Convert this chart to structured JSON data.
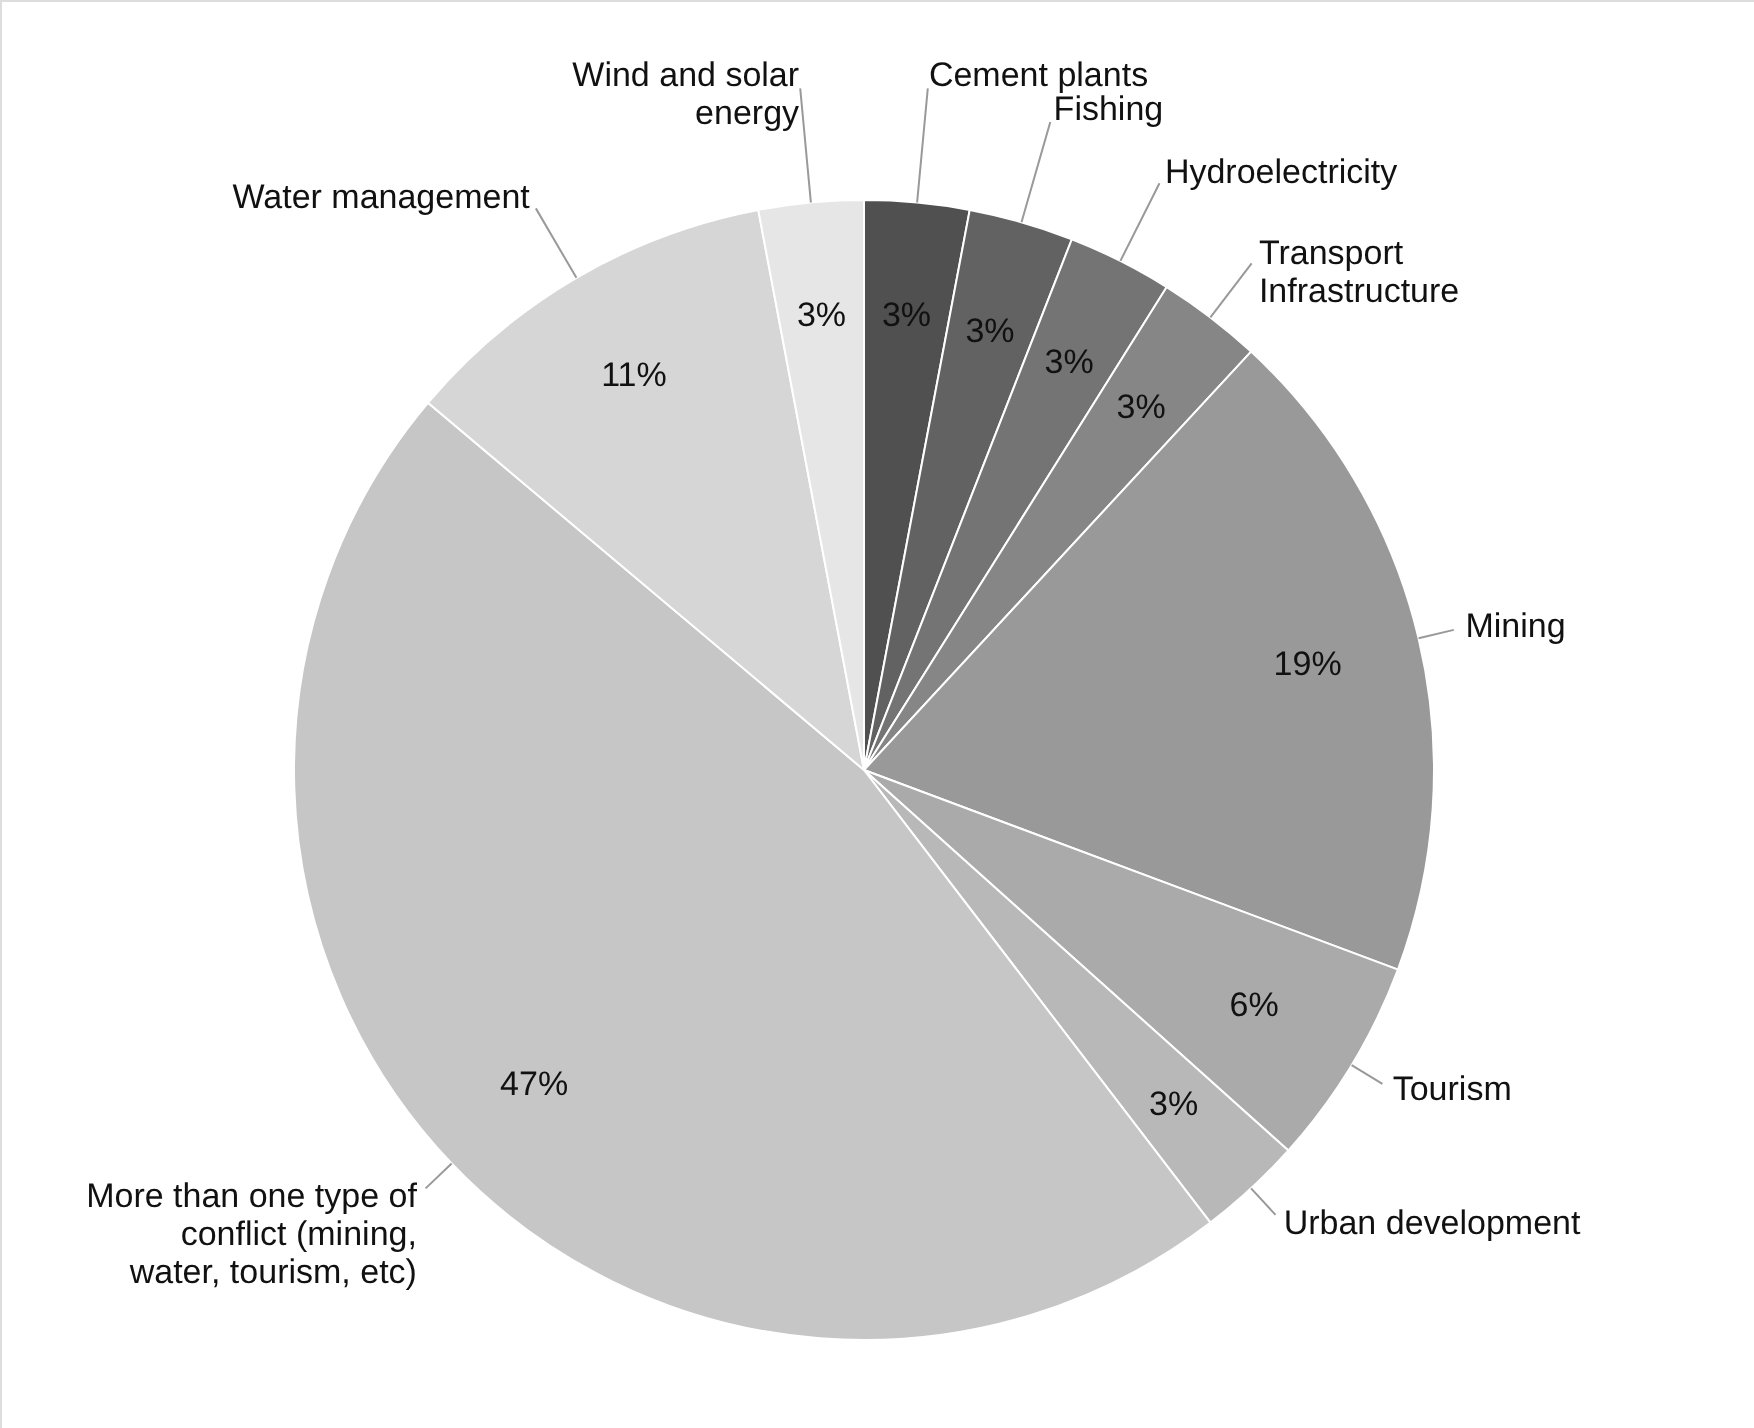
{
  "chart_data": {
    "type": "pie",
    "categories": [
      "Cement plants",
      "Fishing",
      "Hydroelectricity",
      "Transport\nInfrastructure",
      "Mining",
      "Tourism",
      "Urban development",
      "More than one type of\nconflict (mining,\nwater, tourism, etc)",
      "Water management",
      "Wind and solar\nenergy"
    ],
    "values": [
      3,
      3,
      3,
      3,
      19,
      6,
      3,
      47,
      11,
      3
    ],
    "value_labels": [
      "3%",
      "3%",
      "3%",
      "3%",
      "19%",
      "6%",
      "3%",
      "47%",
      "11%",
      "3%"
    ],
    "colors": [
      "#505050",
      "#626262",
      "#747474",
      "#868686",
      "#999999",
      "#aaaaaa",
      "#b8b8b8",
      "#c6c6c6",
      "#d6d6d6",
      "#e6e6e6"
    ]
  }
}
